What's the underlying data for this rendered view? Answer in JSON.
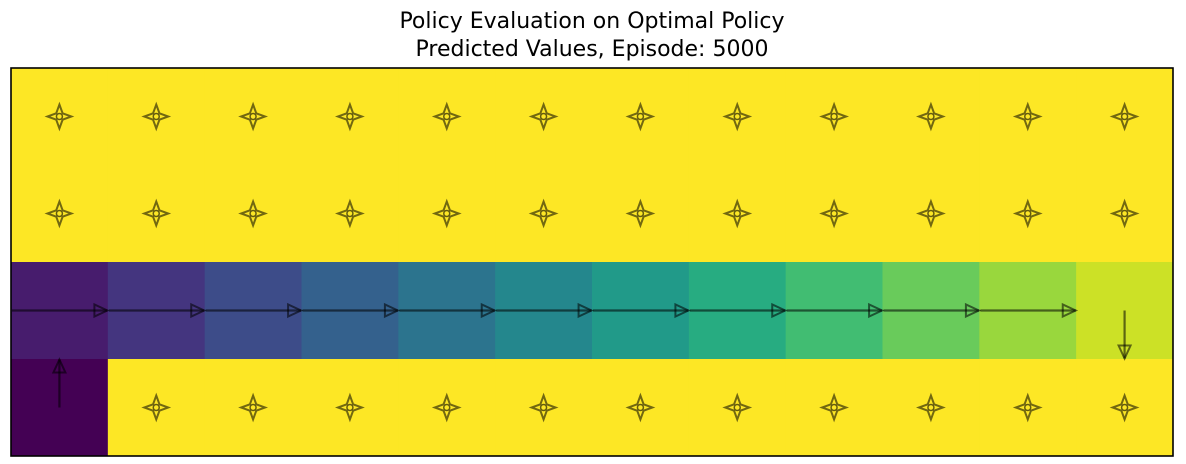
{
  "chart_data": {
    "type": "heatmap",
    "title": "Policy Evaluation on Optimal Policy",
    "subtitle": "Predicted Values, Episode: 5000",
    "rows": 4,
    "cols": 12,
    "colormap": "viridis",
    "value_range": [
      -13,
      0
    ],
    "values": [
      [
        0,
        0,
        0,
        0,
        0,
        0,
        0,
        0,
        0,
        0,
        0,
        0
      ],
      [
        0,
        0,
        0,
        0,
        0,
        0,
        0,
        0,
        0,
        0,
        0,
        0
      ],
      [
        -12,
        -11,
        -10,
        -9,
        -8,
        -7,
        -6,
        -5,
        -4,
        -3,
        -2,
        -1
      ],
      [
        -13,
        0,
        0,
        0,
        0,
        0,
        0,
        0,
        0,
        0,
        0,
        0
      ]
    ],
    "policy": [
      [
        "all",
        "all",
        "all",
        "all",
        "all",
        "all",
        "all",
        "all",
        "all",
        "all",
        "all",
        "all"
      ],
      [
        "all",
        "all",
        "all",
        "all",
        "all",
        "all",
        "all",
        "all",
        "all",
        "all",
        "all",
        "all"
      ],
      [
        "right",
        "right",
        "right",
        "right",
        "right",
        "right",
        "right",
        "right",
        "right",
        "right",
        "right",
        "down"
      ],
      [
        "up",
        "all",
        "all",
        "all",
        "all",
        "all",
        "all",
        "all",
        "all",
        "all",
        "all",
        "all"
      ]
    ],
    "grid": false
  }
}
